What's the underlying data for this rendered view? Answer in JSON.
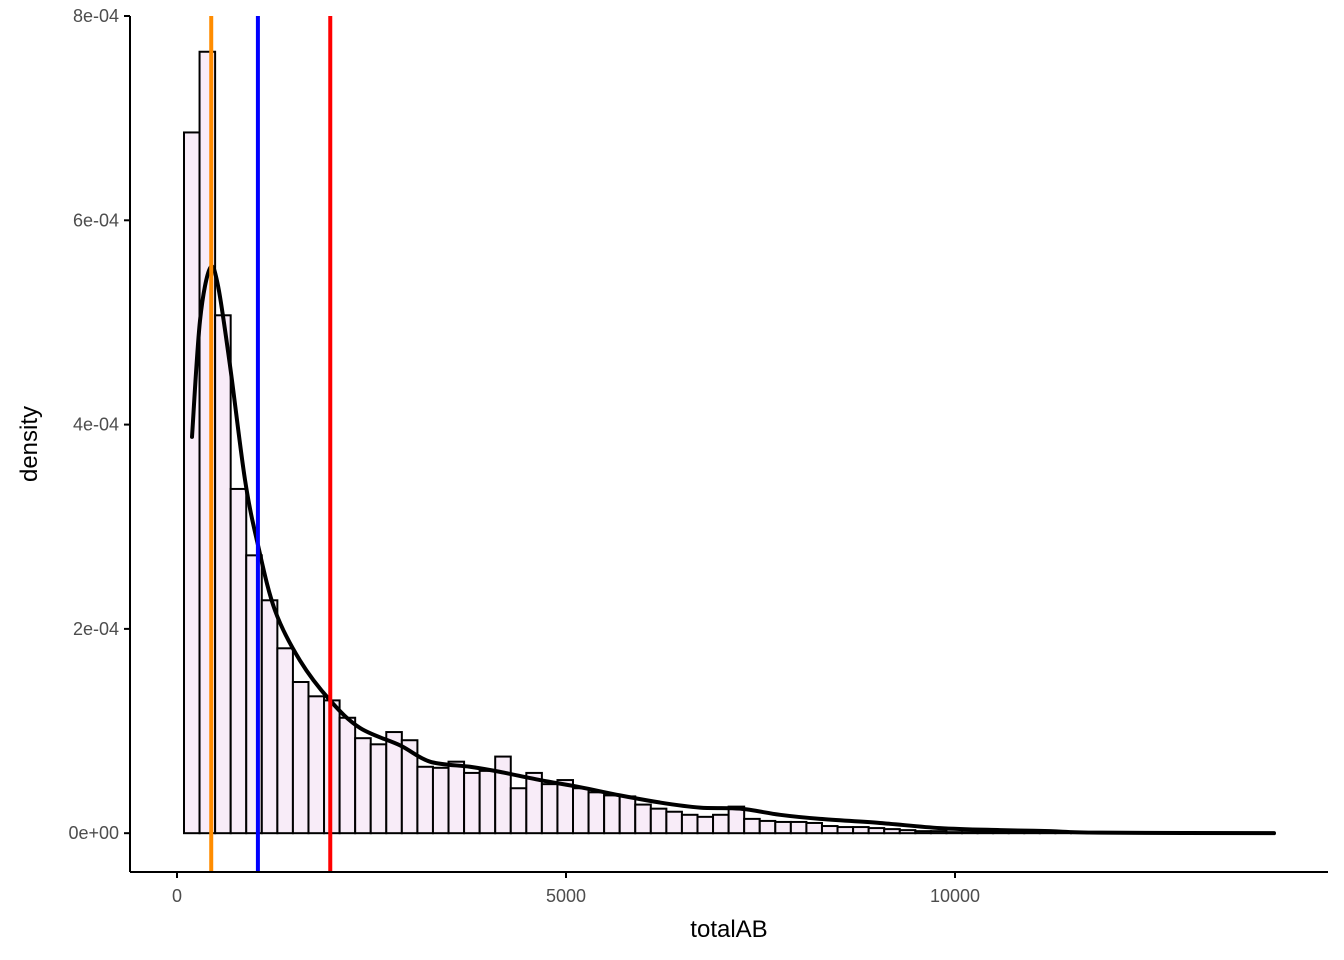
{
  "chart_data": {
    "type": "histogram",
    "title": "",
    "xlabel": "totalAB",
    "ylabel": "density",
    "xlim": [
      -604,
      14794
    ],
    "ylim": [
      -3.8e-05,
      0.0008
    ],
    "grid": false,
    "x_ticks": [
      {
        "value": 0,
        "label": "0"
      },
      {
        "value": 5000,
        "label": "5000"
      },
      {
        "value": 10000,
        "label": "10000"
      }
    ],
    "y_ticks": [
      {
        "value": 0,
        "label": "0e+00"
      },
      {
        "value": 0.0002,
        "label": "2e-04"
      },
      {
        "value": 0.0004,
        "label": "4e-04"
      },
      {
        "value": 0.0006,
        "label": "6e-04"
      },
      {
        "value": 0.0008,
        "label": "8e-04"
      }
    ],
    "bin_start": 90,
    "bin_width": 200,
    "bar_fill": "#F8ECF8",
    "bar_stroke": "#000000",
    "bar_densities": [
      0.000686,
      0.000765,
      0.000507,
      0.000337,
      0.000272,
      0.000228,
      0.000181,
      0.000148,
      0.000134,
      0.00013,
      0.000113,
      9.3e-05,
      8.7e-05,
      9.9e-05,
      9.1e-05,
      6.5e-05,
      6.4e-05,
      7e-05,
      5.9e-05,
      6.1e-05,
      7.5e-05,
      4.4e-05,
      5.9e-05,
      4.8e-05,
      5.2e-05,
      4.4e-05,
      4e-05,
      3.7e-05,
      3.6e-05,
      2.8e-05,
      2.4e-05,
      2.1e-05,
      1.8e-05,
      1.6e-05,
      1.8e-05,
      2.6e-05,
      1.4e-05,
      1.2e-05,
      1.1e-05,
      1.1e-05,
      1e-05,
      7e-06,
      6e-06,
      6e-06,
      5e-06,
      4e-06,
      3e-06,
      2e-06,
      2e-06,
      1e-06,
      1e-06,
      1e-06,
      1e-06,
      1e-06,
      5e-07,
      5e-07,
      3e-07,
      3e-07,
      2e-07,
      2e-07,
      2e-07,
      1e-07,
      1e-07,
      1e-07,
      1e-07,
      1e-07,
      1e-07,
      1e-07,
      1e-07,
      1e-07
    ],
    "density_curve": {
      "color": "#000000",
      "x": [
        193,
        296,
        424,
        527,
        681,
        874,
        1041,
        1260,
        1581,
        1967,
        2352,
        2866,
        3252,
        3766,
        4152,
        4666,
        5180,
        5694,
        6208,
        6722,
        7237,
        7751,
        8265,
        9036,
        9807,
        10578,
        11221,
        11864,
        14100
      ],
      "y": [
        0.000388,
        0.000502,
        0.000553,
        0.000536,
        0.000458,
        0.000346,
        0.000282,
        0.000218,
        0.000169,
        0.00013,
        0.000103,
        8.6e-05,
        7e-05,
        6.5e-05,
        6e-05,
        5.2e-05,
        4.5e-05,
        3.7e-05,
        3e-05,
        2.5e-05,
        2.4e-05,
        1.8e-05,
        1.4e-05,
        1e-05,
        5e-06,
        3e-06,
        2e-06,
        5e-07,
        0
      ]
    },
    "vlines": [
      {
        "x": 440,
        "color": "#FF8C00"
      },
      {
        "x": 1040,
        "color": "#0000FF"
      },
      {
        "x": 1970,
        "color": "#FF0000"
      }
    ]
  }
}
